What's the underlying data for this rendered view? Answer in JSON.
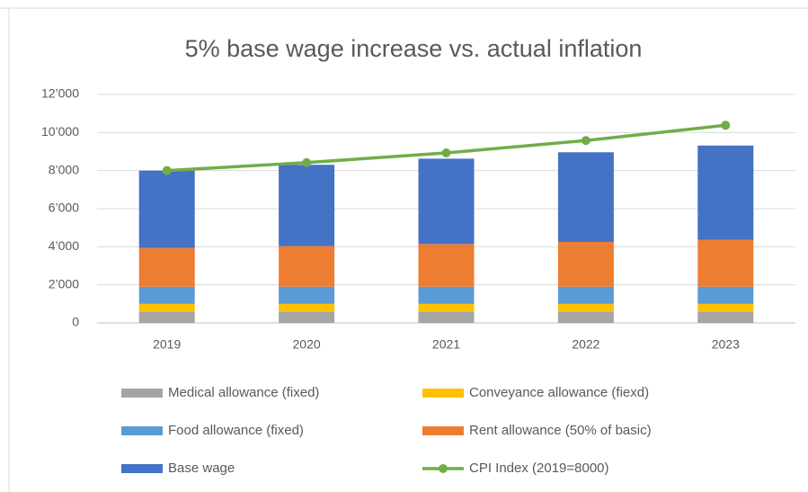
{
  "chart_data": {
    "type": "bar",
    "stacked": true,
    "title": "5% base wage increase vs. actual inflation",
    "categories": [
      "2019",
      "2020",
      "2021",
      "2022",
      "2023"
    ],
    "series": [
      {
        "name": "Medical allowance (fixed)",
        "color": "#a5a5a5",
        "values": [
          600,
          600,
          600,
          600,
          600
        ]
      },
      {
        "name": "Conveyance allowance (fiexd)",
        "color": "#ffc000",
        "values": [
          400,
          400,
          400,
          400,
          400
        ]
      },
      {
        "name": "Food allowance (fixed)",
        "color": "#5b9bd5",
        "values": [
          900,
          900,
          900,
          900,
          900
        ]
      },
      {
        "name": "Rent allowance (50% of basic)",
        "color": "#ed7d31",
        "values": [
          2033,
          2135,
          2242,
          2354,
          2472
        ]
      },
      {
        "name": "Base wage",
        "color": "#4472c4",
        "values": [
          4067,
          4270,
          4484,
          4708,
          4943
        ]
      },
      {
        "name": "CPI Index (2019=8000)",
        "color": "#70ad47",
        "type": "line",
        "values": [
          8000,
          8420,
          8930,
          9580,
          10380
        ]
      }
    ],
    "ylim": [
      0,
      12000
    ],
    "yticks": [
      0,
      {
        "value": 2000,
        "label": "2’000"
      },
      {
        "value": 4000,
        "label": "4’000"
      },
      {
        "value": 6000,
        "label": "6’000"
      },
      {
        "value": 8000,
        "label": "8’000"
      },
      {
        "value": 10000,
        "label": "10’000"
      },
      {
        "value": 12000,
        "label": "12’000"
      }
    ],
    "grid": true,
    "legend": "bottom"
  }
}
